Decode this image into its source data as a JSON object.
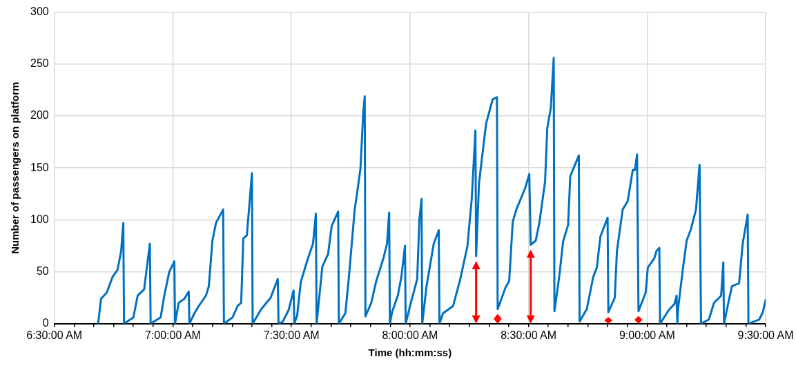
{
  "chart_data": {
    "type": "line",
    "xlabel": "Time (hh:mm:ss)",
    "ylabel": "Number of passengers on platform",
    "x": [
      6.6848,
      6.697,
      6.7212,
      6.7455,
      6.7667,
      6.7818,
      6.7909,
      6.7939,
      6.8333,
      6.8515,
      6.8788,
      6.8879,
      6.903,
      6.9061,
      6.9485,
      6.9636,
      6.9848,
      7.0061,
      7.0091,
      7.0242,
      7.0485,
      7.0667,
      7.0697,
      7.0909,
      7.1091,
      7.1394,
      7.1515,
      7.1667,
      7.1818,
      7.2121,
      7.2152,
      7.2515,
      7.2727,
      7.2879,
      7.297,
      7.3121,
      7.3333,
      7.3364,
      7.3727,
      7.4121,
      7.4424,
      7.4455,
      7.4636,
      7.4879,
      7.5091,
      7.5121,
      7.5242,
      7.5394,
      7.5697,
      7.5909,
      7.603,
      7.6061,
      7.6303,
      7.6545,
      7.6697,
      7.697,
      7.7,
      7.7273,
      7.7424,
      7.7667,
      7.7758,
      7.7909,
      7.803,
      7.8091,
      7.8121,
      7.8364,
      7.8576,
      7.8879,
      7.903,
      7.9121,
      7.9152,
      7.9242,
      7.9485,
      7.9636,
      7.9788,
      7.9818,
      8.0,
      8.0303,
      8.0394,
      8.0485,
      8.0515,
      8.0697,
      8.1,
      8.1212,
      8.1242,
      8.1394,
      8.1818,
      8.2121,
      8.2424,
      8.2606,
      8.2758,
      8.2788,
      8.2909,
      8.3121,
      8.3212,
      8.3485,
      8.3667,
      8.3697,
      8.403,
      8.4182,
      8.4333,
      8.4485,
      8.4848,
      8.503,
      8.5091,
      8.5303,
      8.5455,
      8.5697,
      8.5788,
      8.5939,
      8.6061,
      8.6091,
      8.6303,
      8.6455,
      8.6667,
      8.6758,
      8.7121,
      8.7152,
      8.7455,
      8.7727,
      8.7879,
      8.803,
      8.8333,
      8.8364,
      8.8636,
      8.8727,
      8.897,
      8.9182,
      8.9394,
      8.9485,
      8.9576,
      8.9636,
      8.9939,
      9.003,
      9.0303,
      9.0394,
      9.0515,
      9.0545,
      9.0909,
      9.1152,
      9.1242,
      9.1273,
      9.1303,
      9.1515,
      9.1667,
      9.1848,
      9.2061,
      9.2212,
      9.2273,
      9.2606,
      9.2818,
      9.3121,
      9.3212,
      9.3242,
      9.3424,
      9.3576,
      9.3879,
      9.403,
      9.4242,
      9.4273,
      9.4727,
      9.4879,
      9.5
    ],
    "values": [
      0,
      24,
      30,
      45,
      52,
      70,
      97,
      0,
      6,
      27,
      33,
      50,
      77,
      0,
      6,
      27,
      50,
      60,
      0,
      20,
      24,
      31,
      0,
      10,
      17,
      27,
      36,
      80,
      97,
      110,
      0,
      6,
      17,
      20,
      82,
      85,
      145,
      0,
      14,
      25,
      43,
      0,
      2,
      13,
      32,
      0,
      8,
      40,
      63,
      77,
      106,
      0,
      55,
      67,
      94,
      108,
      0,
      10,
      45,
      110,
      124,
      149,
      204,
      219,
      7,
      20,
      41,
      63,
      77,
      107,
      0,
      11,
      27,
      45,
      75,
      0,
      17,
      43,
      100,
      120,
      0,
      36,
      77,
      90,
      0,
      10,
      17,
      43,
      75,
      121,
      186,
      65,
      135,
      176,
      193,
      216,
      218,
      14,
      35,
      41,
      98,
      110,
      130,
      144,
      76,
      80,
      97,
      137,
      188,
      208,
      256,
      12,
      47,
      79,
      95,
      142,
      162,
      2,
      14,
      45,
      54,
      84,
      102,
      11,
      25,
      70,
      110,
      118,
      148,
      148,
      163,
      12,
      30,
      54,
      63,
      70,
      73,
      0,
      13,
      19,
      27,
      0,
      14,
      54,
      80,
      91,
      110,
      153,
      0,
      4,
      20,
      27,
      59,
      0,
      20,
      36,
      39,
      77,
      105,
      0,
      4,
      11,
      23
    ],
    "color": "#0070c0",
    "marker": "none",
    "line_style": "solid",
    "grid": true,
    "xlim": [
      6.5,
      9.5
    ],
    "xticks": [
      {
        "value": 6.5,
        "label": "6:30:00 AM"
      },
      {
        "value": 6.5833,
        "label": null
      },
      {
        "value": 6.6667,
        "label": null
      },
      {
        "value": 6.75,
        "label": null
      },
      {
        "value": 6.8333,
        "label": null
      },
      {
        "value": 6.9167,
        "label": null
      },
      {
        "value": 7,
        "label": "7:00:00 AM"
      },
      {
        "value": 7.0833,
        "label": null
      },
      {
        "value": 7.1667,
        "label": null
      },
      {
        "value": 7.25,
        "label": null
      },
      {
        "value": 7.3333,
        "label": null
      },
      {
        "value": 7.4167,
        "label": null
      },
      {
        "value": 7.5,
        "label": "7:30:00 AM"
      },
      {
        "value": 7.5833,
        "label": null
      },
      {
        "value": 7.6667,
        "label": null
      },
      {
        "value": 7.75,
        "label": null
      },
      {
        "value": 7.8333,
        "label": null
      },
      {
        "value": 7.9167,
        "label": null
      },
      {
        "value": 8,
        "label": "8:00:00 AM"
      },
      {
        "value": 8.0833,
        "label": null
      },
      {
        "value": 8.1667,
        "label": null
      },
      {
        "value": 8.25,
        "label": null
      },
      {
        "value": 8.3333,
        "label": null
      },
      {
        "value": 8.4167,
        "label": null
      },
      {
        "value": 8.5,
        "label": "8:30:00 AM"
      },
      {
        "value": 8.5833,
        "label": null
      },
      {
        "value": 8.6667,
        "label": null
      },
      {
        "value": 8.75,
        "label": null
      },
      {
        "value": 8.8333,
        "label": null
      },
      {
        "value": 8.9167,
        "label": null
      },
      {
        "value": 9,
        "label": "9:00:00 AM"
      },
      {
        "value": 9.0833,
        "label": null
      },
      {
        "value": 9.1667,
        "label": null
      },
      {
        "value": 9.25,
        "label": null
      },
      {
        "value": 9.3333,
        "label": null
      },
      {
        "value": 9.4167,
        "label": null
      },
      {
        "value": 9.5,
        "label": "9:30:00 AM"
      }
    ],
    "ylim": [
      0,
      300
    ],
    "yticks": [
      0,
      50,
      100,
      150,
      200,
      250,
      300
    ]
  }
}
